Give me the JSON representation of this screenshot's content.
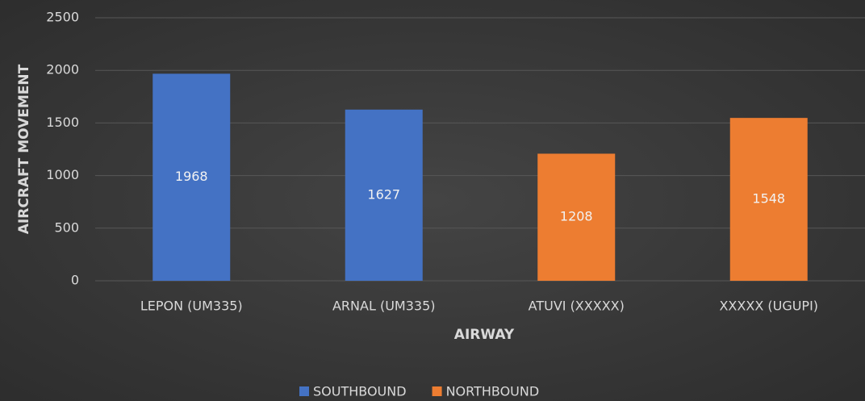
{
  "chart_data": {
    "type": "bar",
    "categories": [
      "LEPON (UM335)",
      "ARNAL (UM335)",
      "ATUVI (XXXXX)",
      "XXXXX (UGUPI)"
    ],
    "series": [
      {
        "name": "SOUTHBOUND",
        "color": "#4472c4",
        "values": [
          1968,
          1627,
          null,
          null
        ]
      },
      {
        "name": "NORTHBOUND",
        "color": "#ed7d31",
        "values": [
          null,
          null,
          1208,
          1548
        ]
      }
    ],
    "xlabel": "AIRWAY",
    "ylabel": "AIRCRAFT MOVEMENT",
    "ylim": [
      0,
      2500
    ],
    "yticks": [
      0,
      500,
      1000,
      1500,
      2000,
      2500
    ],
    "grid": true,
    "legend": "bottom"
  }
}
